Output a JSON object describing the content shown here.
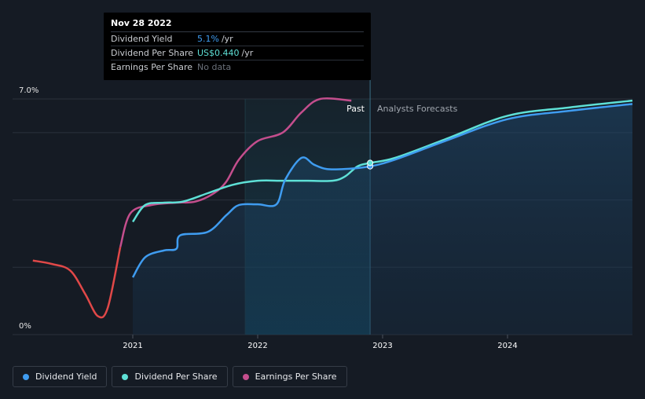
{
  "chart_data": {
    "type": "line",
    "y_axis": {
      "min": 0,
      "max": 7.0,
      "top_label": "7.0%",
      "bottom_label": "0%"
    },
    "x_ticks": [
      {
        "year": 2021,
        "label": "2021"
      },
      {
        "year": 2022,
        "label": "2022"
      },
      {
        "year": 2023,
        "label": "2023"
      },
      {
        "year": 2024,
        "label": "2024"
      }
    ],
    "x_range": [
      2020.2,
      2025.0
    ],
    "divider_year": 2022.9,
    "shade_start_year": 2021.9,
    "regions": {
      "past": "Past",
      "forecast": "Analysts Forecasts"
    },
    "series": [
      {
        "name": "Earnings Per Share",
        "color": "#c44e8d",
        "points": [
          [
            2020.2,
            2.2
          ],
          [
            2020.35,
            2.1
          ],
          [
            2020.5,
            1.9
          ],
          [
            2020.62,
            1.2
          ],
          [
            2020.72,
            0.55
          ],
          [
            2020.8,
            0.8
          ],
          [
            2020.9,
            2.6
          ],
          [
            2020.98,
            3.6
          ],
          [
            2021.15,
            3.85
          ],
          [
            2021.35,
            3.92
          ],
          [
            2021.5,
            3.95
          ],
          [
            2021.65,
            4.2
          ],
          [
            2021.75,
            4.55
          ],
          [
            2021.85,
            5.2
          ],
          [
            2022.0,
            5.75
          ],
          [
            2022.2,
            6.0
          ],
          [
            2022.35,
            6.6
          ],
          [
            2022.5,
            7.0
          ],
          [
            2022.75,
            6.95
          ]
        ]
      },
      {
        "name": "Dividend Per Share",
        "color": "#5ee0d6",
        "points": [
          [
            2021.0,
            3.35
          ],
          [
            2021.1,
            3.85
          ],
          [
            2021.25,
            3.92
          ],
          [
            2021.4,
            3.95
          ],
          [
            2021.6,
            4.2
          ],
          [
            2021.8,
            4.45
          ],
          [
            2022.0,
            4.57
          ],
          [
            2022.2,
            4.57
          ],
          [
            2022.4,
            4.57
          ],
          [
            2022.6,
            4.57
          ],
          [
            2022.7,
            4.7
          ],
          [
            2022.8,
            5.0
          ],
          [
            2022.9,
            5.1
          ],
          [
            2023.1,
            5.25
          ],
          [
            2023.5,
            5.8
          ],
          [
            2024.0,
            6.5
          ],
          [
            2024.5,
            6.75
          ],
          [
            2025.0,
            6.95
          ]
        ]
      },
      {
        "name": "Dividend Yield",
        "color": "#3f9cf0",
        "points": [
          [
            2021.0,
            1.7
          ],
          [
            2021.1,
            2.3
          ],
          [
            2021.25,
            2.5
          ],
          [
            2021.35,
            2.55
          ],
          [
            2021.38,
            2.95
          ],
          [
            2021.6,
            3.05
          ],
          [
            2021.75,
            3.55
          ],
          [
            2021.85,
            3.85
          ],
          [
            2022.0,
            3.87
          ],
          [
            2022.15,
            3.87
          ],
          [
            2022.22,
            4.6
          ],
          [
            2022.35,
            5.25
          ],
          [
            2022.45,
            5.05
          ],
          [
            2022.55,
            4.92
          ],
          [
            2022.7,
            4.92
          ],
          [
            2022.9,
            5.0
          ],
          [
            2023.1,
            5.2
          ],
          [
            2023.5,
            5.75
          ],
          [
            2024.0,
            6.4
          ],
          [
            2024.5,
            6.65
          ],
          [
            2025.0,
            6.85
          ]
        ]
      }
    ]
  },
  "tooltip": {
    "date": "Nov 28 2022",
    "rows": [
      {
        "name": "Dividend Yield",
        "value": "5.1%",
        "unit": "/yr"
      },
      {
        "name": "Dividend Per Share",
        "value": "US$0.440",
        "unit": "/yr"
      },
      {
        "name": "Earnings Per Share",
        "value": "No data",
        "unit": ""
      }
    ]
  },
  "legend": [
    {
      "label": "Dividend Yield",
      "color": "#3f9cf0"
    },
    {
      "label": "Dividend Per Share",
      "color": "#5ee0d6"
    },
    {
      "label": "Earnings Per Share",
      "color": "#c44e8d"
    }
  ],
  "colors": {
    "background": "#151b24",
    "grid": "#2b323c",
    "past_text": "#ffffff",
    "forecast_text": "#a0a6ae"
  }
}
